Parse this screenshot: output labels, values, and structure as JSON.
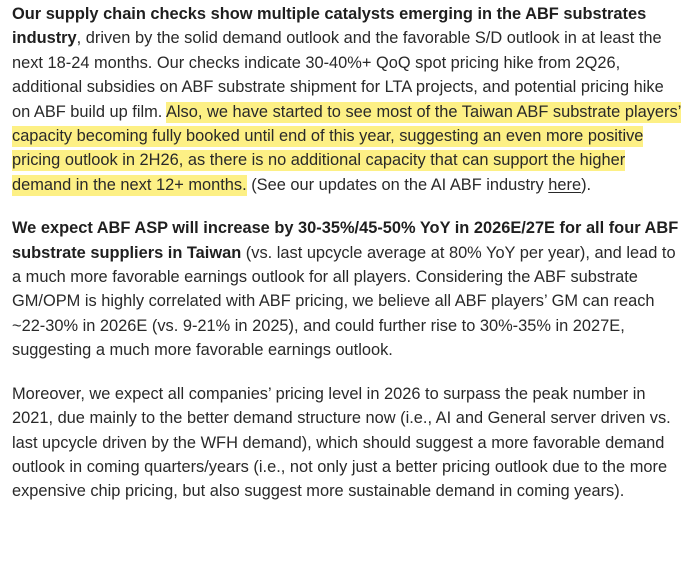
{
  "paragraphs": [
    {
      "lead_bold": "Our supply chain checks show multiple catalysts emerging in the ABF substrates industry",
      "body_text": ", driven by the solid demand outlook and the favorable S/D outlook in at least the next 18-24 months. Our checks indicate 30-40%+ QoQ spot pricing hike from 2Q26, additional subsidies on ABF substrate shipment for LTA projects, and potential pricing hike on ABF build up film.",
      "highlighted_text": "Also, we have started to see most of the Taiwan ABF substrate players’ capacity becoming fully booked until end of this year, suggesting an even more positive pricing outlook in 2H26, as there is no additional capacity that can support the higher demand in the next 12+ months.",
      "tail_text": "(See our updates on the AI ABF industry",
      "link_text": "here",
      "closing_text": ")."
    },
    {
      "lead_bold": "We expect ABF ASP will increase by 30-35%/45-50% YoY in 2026E/27E for all four ABF substrate suppliers in Taiwan",
      "body_text": "(vs. last upcycle average at 80% YoY per year), and lead to a much more favorable earnings outlook for all players. Considering the ABF substrate GM/OPM is highly correlated with ABF pricing, we believe all ABF players’ GM can reach ~22-30% in 2026E (vs. 9-21% in 2025), and could further rise to 30%-35% in 2027E, suggesting a much more favorable earnings outlook."
    },
    {
      "body_text": "Moreover, we expect all companies’ pricing level in 2026 to surpass the peak number in 2021, due mainly to the better demand structure now (i.e., AI and General server driven vs. last upcycle driven by the WFH demand), which should suggest a more favorable demand outlook in coming quarters/years (i.e., not only just a better pricing outlook due to the more expensive chip pricing, but also suggest more sustainable demand in coming years)."
    }
  ],
  "colors": {
    "highlight": "#fdf085",
    "text": "#292929"
  }
}
